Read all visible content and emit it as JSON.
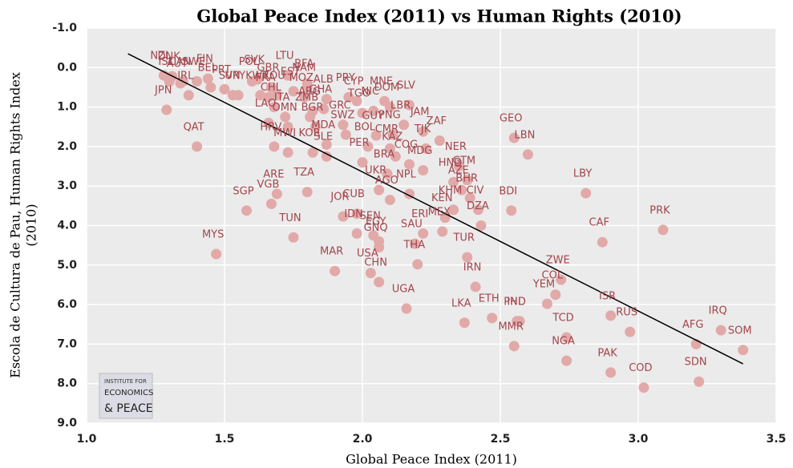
{
  "chart_data": {
    "type": "scatter",
    "title": "Global Peace Index (2011) vs Human Rights (2010)",
    "xlabel": "Global Peace Index (2011)",
    "ylabel": [
      "Escola de Cultura de Pau, Human Rights Index",
      "(2010)"
    ],
    "xlim": [
      1.0,
      3.5
    ],
    "xticks": [
      {
        "value": 1.0,
        "label": "1.0"
      },
      {
        "value": 1.5,
        "label": "1.5"
      },
      {
        "value": 2.0,
        "label": "2.0"
      },
      {
        "value": 2.5,
        "label": "2.5"
      },
      {
        "value": 3.0,
        "label": "3.0"
      },
      {
        "value": 3.5,
        "label": "3.5"
      }
    ],
    "ylim": [
      -1.0,
      9.0
    ],
    "y_inverted": true,
    "yticks": [
      {
        "value": -1,
        "label": "-1.0"
      },
      {
        "value": 0,
        "label": "0.0"
      },
      {
        "value": 1,
        "label": "1.0"
      },
      {
        "value": 2,
        "label": "2.0"
      },
      {
        "value": 3,
        "label": "3.0"
      },
      {
        "value": 4,
        "label": "4.0"
      },
      {
        "value": 5,
        "label": "5.0"
      },
      {
        "value": 6,
        "label": "6.0"
      },
      {
        "value": 7,
        "label": "7.0"
      },
      {
        "value": 8,
        "label": "8.0"
      },
      {
        "value": 9,
        "label": "9.0"
      }
    ],
    "grid": true,
    "color": "#e2a9a9",
    "label_color": "#a3454c",
    "labels": [
      "NZL",
      "ISL",
      "DNK",
      "CAN",
      "SWE",
      "FIN",
      "JPN",
      "IRL",
      "AUT",
      "BEL",
      "PRT",
      "SVN",
      "URY",
      "POL",
      "SVK",
      "GBR",
      "LTU",
      "NAM",
      "BFA",
      "EST",
      "FRA",
      "KWT",
      "ROU",
      "MOZ",
      "CHL",
      "ITA",
      "ARG",
      "ALB",
      "GHA",
      "PRY",
      "CYP",
      "MNE",
      "DOM",
      "SLV",
      "TGO",
      "NIC",
      "GRC",
      "LAO",
      "OMN",
      "BGR",
      "ZMB",
      "SWZ",
      "GUY",
      "LBR",
      "PNG",
      "JAM",
      "BOL",
      "CMR",
      "KAZ",
      "TJK",
      "HRV",
      "MWI",
      "KOR",
      "SLE",
      "MDA",
      "PER",
      "COG",
      "MDG",
      "NER",
      "HND",
      "GTM",
      "ZAF",
      "GEO",
      "LBN",
      "BRA",
      "NPL",
      "UKR",
      "JOR",
      "CUB",
      "IDN",
      "SEN",
      "GNQ",
      "AGO",
      "KHM",
      "AZE",
      "BHR",
      "CIV",
      "DZA",
      "KEN",
      "ERI",
      "MEX",
      "SAU",
      "EGY",
      "USA",
      "CHN",
      "THA",
      "TUR",
      "UGA",
      "MAR",
      "MYS",
      "TUN",
      "SGP",
      "ARE",
      "VGB",
      "QAT",
      "TZA",
      "BDI",
      "LBY",
      "CAF",
      "PRK",
      "ZWE",
      "COL",
      "YEM",
      "IND",
      "PHL",
      "ETH",
      "IRN",
      "LKA",
      "MMR",
      "TCD",
      "NGA",
      "ISR",
      "RUS",
      "PAK",
      "COD",
      "IRQ",
      "SOM",
      "AFG",
      "SDN"
    ],
    "x": [
      1.28,
      1.3,
      1.31,
      1.35,
      1.4,
      1.44,
      1.29,
      1.37,
      1.34,
      1.45,
      1.5,
      1.53,
      1.55,
      1.6,
      1.62,
      1.67,
      1.73,
      1.8,
      1.8,
      1.75,
      1.66,
      1.63,
      1.69,
      1.79,
      1.68,
      1.72,
      1.82,
      1.87,
      1.86,
      1.95,
      1.98,
      2.08,
      2.1,
      2.17,
      2.0,
      2.04,
      1.93,
      1.66,
      1.73,
      1.83,
      1.81,
      1.94,
      2.05,
      2.15,
      2.11,
      2.22,
      2.02,
      2.1,
      2.12,
      2.23,
      1.68,
      1.73,
      1.82,
      1.87,
      1.87,
      2.0,
      2.17,
      2.22,
      2.35,
      2.33,
      2.38,
      2.28,
      2.55,
      2.6,
      2.09,
      2.17,
      2.06,
      1.93,
      1.98,
      1.98,
      2.04,
      2.06,
      2.1,
      2.33,
      2.36,
      2.39,
      2.42,
      2.43,
      2.3,
      2.22,
      2.29,
      2.19,
      2.06,
      2.03,
      2.06,
      2.2,
      2.38,
      2.16,
      1.9,
      1.47,
      1.75,
      1.58,
      1.69,
      1.67,
      1.4,
      1.8,
      2.54,
      2.81,
      2.87,
      3.09,
      2.72,
      2.7,
      2.67,
      2.57,
      2.56,
      2.47,
      2.41,
      2.37,
      2.55,
      2.74,
      2.74,
      2.9,
      2.97,
      2.9,
      3.02,
      3.3,
      3.38,
      3.21,
      3.22
    ],
    "values": [
      0.2,
      0.35,
      0.22,
      0.35,
      0.35,
      0.28,
      1.07,
      0.7,
      0.4,
      0.5,
      0.55,
      0.7,
      0.7,
      0.35,
      0.3,
      0.5,
      0.2,
      0.5,
      0.4,
      0.6,
      0.75,
      0.7,
      0.7,
      0.75,
      1.0,
      1.25,
      1.1,
      0.8,
      1.05,
      0.75,
      0.85,
      0.85,
      1.0,
      0.95,
      1.15,
      1.1,
      1.45,
      1.4,
      1.5,
      1.5,
      1.25,
      1.7,
      1.72,
      1.45,
      1.7,
      1.62,
      2.0,
      2.05,
      2.25,
      2.05,
      2.0,
      2.15,
      2.15,
      2.25,
      1.95,
      2.4,
      2.45,
      2.6,
      2.5,
      2.9,
      2.85,
      1.85,
      1.78,
      2.2,
      2.69,
      3.2,
      3.1,
      3.77,
      3.7,
      4.2,
      4.25,
      4.55,
      3.35,
      3.6,
      3.1,
      3.3,
      3.6,
      4.0,
      3.8,
      4.2,
      4.15,
      4.46,
      4.4,
      5.2,
      5.43,
      4.98,
      4.8,
      6.1,
      5.15,
      4.72,
      4.3,
      3.62,
      3.2,
      3.45,
      2.0,
      3.15,
      3.62,
      3.18,
      4.42,
      4.11,
      5.37,
      5.75,
      5.98,
      6.42,
      6.42,
      6.34,
      5.55,
      6.46,
      7.05,
      6.83,
      7.42,
      6.28,
      6.69,
      7.72,
      8.1,
      6.65,
      7.15,
      7.0,
      7.95
    ],
    "trendline": {
      "x": [
        1.15,
        3.38
      ],
      "values": [
        -0.35,
        7.5
      ],
      "color": "#000000"
    },
    "logo": [
      "INSTITUTE FOR",
      "ECONOMICS",
      "& PEACE"
    ]
  }
}
